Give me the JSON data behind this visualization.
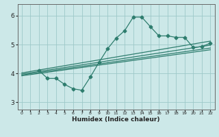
{
  "xlabel": "Humidex (Indice chaleur)",
  "ylabel": "",
  "bg_color": "#cce8e8",
  "line_color": "#2e7d6e",
  "grid_color": "#9dc8c8",
  "xlim": [
    -0.5,
    22.5
  ],
  "ylim": [
    2.75,
    6.4
  ],
  "xticks": [
    0,
    1,
    2,
    3,
    4,
    5,
    6,
    7,
    8,
    9,
    10,
    11,
    12,
    13,
    14,
    15,
    16,
    17,
    18,
    19,
    20,
    21,
    22
  ],
  "yticks": [
    3,
    4,
    5,
    6
  ],
  "series_main": {
    "x": [
      2,
      3,
      4,
      5,
      6,
      7,
      8,
      9,
      10,
      11,
      12,
      13,
      14,
      15,
      16,
      17,
      18,
      19,
      20,
      21,
      22
    ],
    "y": [
      4.1,
      3.83,
      3.83,
      3.62,
      3.47,
      3.42,
      3.88,
      4.38,
      4.85,
      5.22,
      5.48,
      5.95,
      5.95,
      5.62,
      5.3,
      5.3,
      5.25,
      5.25,
      4.9,
      4.93,
      5.05
    ]
  },
  "straight_lines": [
    {
      "x0": 0,
      "y0": 4.02,
      "x1": 22,
      "y1": 5.12
    },
    {
      "x0": 0,
      "y0": 3.98,
      "x1": 22,
      "y1": 4.98
    },
    {
      "x0": 0,
      "y0": 3.95,
      "x1": 22,
      "y1": 4.88
    },
    {
      "x0": 0,
      "y0": 3.92,
      "x1": 22,
      "y1": 4.82
    }
  ]
}
